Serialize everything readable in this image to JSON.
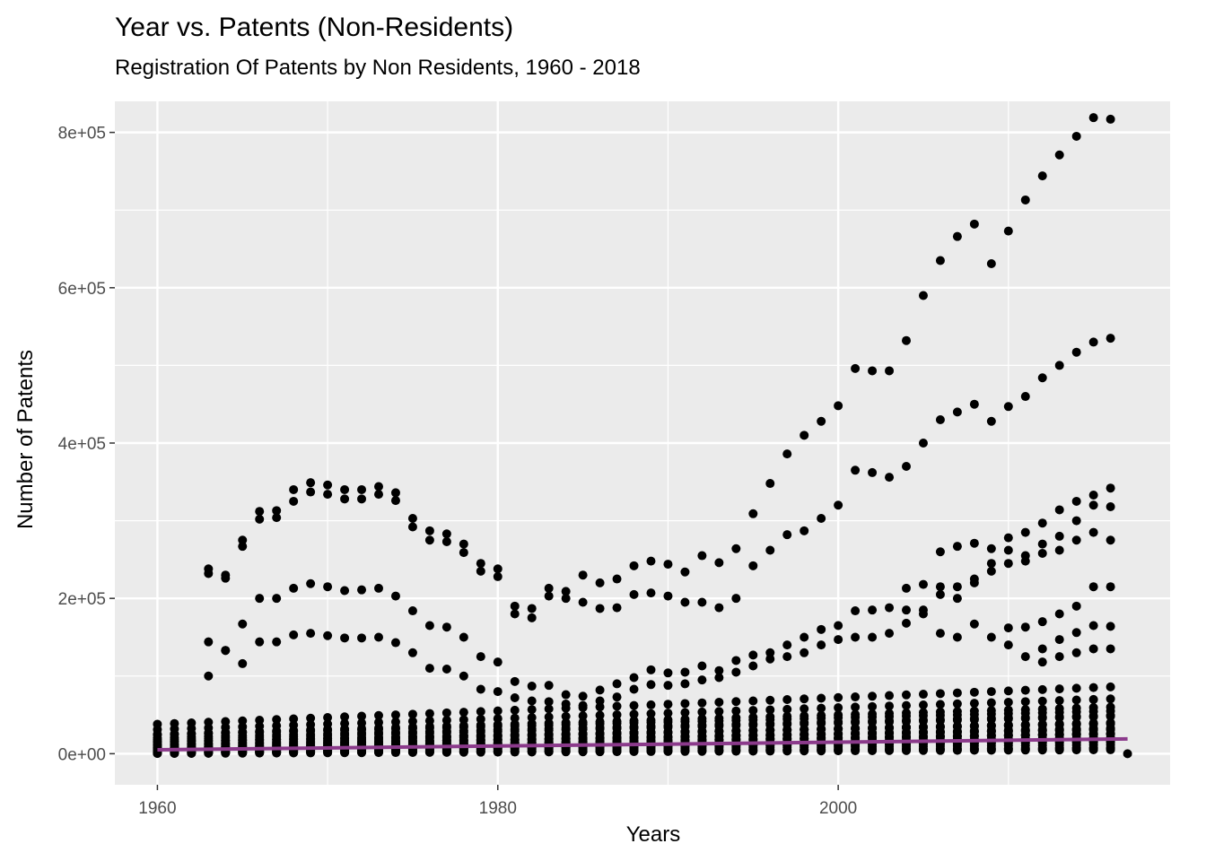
{
  "chart_data": {
    "type": "scatter",
    "title": "Year vs. Patents (Non-Residents)",
    "subtitle": "Registration Of Patents by Non Residents, 1960 - 2018",
    "xlabel": "Years",
    "ylabel": "Number of Patents",
    "xlim": [
      1957.5,
      2019.5
    ],
    "ylim": [
      -40000,
      840000
    ],
    "x_ticks": [
      1960,
      1980,
      2000
    ],
    "y_ticks": [
      0,
      200000,
      400000,
      600000,
      800000
    ],
    "y_tick_labels": [
      "0e+00",
      "2e+05",
      "4e+05",
      "6e+05",
      "8e+05"
    ],
    "grid": true,
    "legend": "none",
    "point_color": "#000000",
    "trend_color": "#8b3a8b",
    "panel_background": "#ebebeb",
    "upper_series": [
      {
        "name": "",
        "points": [
          [
            1963,
            238000
          ],
          [
            1964,
            230000
          ],
          [
            1965,
            275000
          ],
          [
            1966,
            312000
          ],
          [
            1967,
            313000
          ],
          [
            1968,
            340000
          ],
          [
            1969,
            349000
          ],
          [
            1970,
            346000
          ],
          [
            1971,
            340000
          ],
          [
            1972,
            340000
          ],
          [
            1973,
            344000
          ],
          [
            1974,
            336000
          ],
          [
            1975,
            303000
          ],
          [
            1976,
            287000
          ],
          [
            1977,
            283000
          ],
          [
            1978,
            270000
          ],
          [
            1979,
            245000
          ],
          [
            1980,
            238000
          ],
          [
            1981,
            190000
          ],
          [
            1982,
            187000
          ],
          [
            1983,
            213000
          ],
          [
            1984,
            209000
          ],
          [
            1985,
            230000
          ],
          [
            1986,
            220000
          ],
          [
            1987,
            225000
          ],
          [
            1988,
            242000
          ],
          [
            1989,
            248000
          ],
          [
            1990,
            244000
          ],
          [
            1991,
            234000
          ],
          [
            1992,
            255000
          ],
          [
            1993,
            246000
          ],
          [
            1994,
            264000
          ],
          [
            1995,
            309000
          ],
          [
            1996,
            348000
          ],
          [
            1997,
            386000
          ],
          [
            1998,
            410000
          ],
          [
            1999,
            428000
          ],
          [
            2000,
            448000
          ],
          [
            2001,
            496000
          ],
          [
            2002,
            493000
          ],
          [
            2003,
            493000
          ],
          [
            2004,
            532000
          ],
          [
            2005,
            590000
          ],
          [
            2006,
            635000
          ],
          [
            2007,
            666000
          ],
          [
            2008,
            682000
          ],
          [
            2009,
            631000
          ],
          [
            2010,
            673000
          ],
          [
            2011,
            713000
          ],
          [
            2012,
            744000
          ],
          [
            2013,
            771000
          ],
          [
            2014,
            795000
          ],
          [
            2015,
            819000
          ],
          [
            2016,
            817000
          ]
        ]
      },
      {
        "name": "",
        "points": [
          [
            1963,
            232000
          ],
          [
            1964,
            226000
          ],
          [
            1965,
            267000
          ],
          [
            1966,
            302000
          ],
          [
            1967,
            304000
          ],
          [
            1968,
            325000
          ],
          [
            1969,
            337000
          ],
          [
            1970,
            334000
          ],
          [
            1971,
            328000
          ],
          [
            1972,
            328000
          ],
          [
            1973,
            334000
          ],
          [
            1974,
            326000
          ],
          [
            1975,
            292000
          ],
          [
            1976,
            275000
          ],
          [
            1977,
            273000
          ],
          [
            1978,
            259000
          ],
          [
            1979,
            235000
          ],
          [
            1980,
            228000
          ],
          [
            1981,
            180000
          ],
          [
            1982,
            175000
          ],
          [
            1983,
            203000
          ],
          [
            1984,
            200000
          ],
          [
            1985,
            195000
          ],
          [
            1986,
            187000
          ],
          [
            1987,
            188000
          ],
          [
            1988,
            205000
          ],
          [
            1989,
            207000
          ],
          [
            1990,
            203000
          ],
          [
            1991,
            195000
          ],
          [
            1992,
            195000
          ],
          [
            1993,
            188000
          ],
          [
            1994,
            200000
          ],
          [
            1995,
            242000
          ],
          [
            1996,
            262000
          ],
          [
            1997,
            282000
          ],
          [
            1998,
            287000
          ],
          [
            1999,
            303000
          ],
          [
            2000,
            320000
          ],
          [
            2001,
            365000
          ],
          [
            2002,
            362000
          ],
          [
            2003,
            356000
          ],
          [
            2004,
            370000
          ],
          [
            2005,
            400000
          ],
          [
            2006,
            430000
          ],
          [
            2007,
            440000
          ],
          [
            2008,
            450000
          ],
          [
            2009,
            428000
          ],
          [
            2010,
            447000
          ],
          [
            2011,
            460000
          ],
          [
            2012,
            484000
          ],
          [
            2013,
            500000
          ],
          [
            2014,
            517000
          ],
          [
            2015,
            530000
          ],
          [
            2016,
            535000
          ]
        ]
      },
      {
        "name": "",
        "points": [
          [
            1963,
            100000
          ],
          [
            1964,
            133000
          ],
          [
            1965,
            167000
          ],
          [
            1966,
            200000
          ],
          [
            1967,
            200000
          ],
          [
            1968,
            213000
          ],
          [
            1969,
            219000
          ],
          [
            1970,
            215000
          ],
          [
            1971,
            210000
          ],
          [
            1972,
            211000
          ],
          [
            1973,
            213000
          ],
          [
            1974,
            203000
          ],
          [
            1975,
            184000
          ],
          [
            1976,
            165000
          ],
          [
            1977,
            163000
          ],
          [
            1978,
            150000
          ],
          [
            1979,
            125000
          ],
          [
            1980,
            118000
          ],
          [
            1981,
            93000
          ],
          [
            1982,
            87000
          ],
          [
            1983,
            88000
          ],
          [
            1984,
            76000
          ],
          [
            1985,
            74000
          ],
          [
            1986,
            82000
          ],
          [
            1987,
            90000
          ],
          [
            1988,
            98000
          ],
          [
            1989,
            108000
          ],
          [
            1990,
            104000
          ],
          [
            1991,
            105000
          ],
          [
            1992,
            113000
          ],
          [
            1993,
            107000
          ],
          [
            1994,
            120000
          ],
          [
            1995,
            127000
          ],
          [
            1996,
            130000
          ],
          [
            1997,
            140000
          ],
          [
            1998,
            150000
          ],
          [
            1999,
            160000
          ],
          [
            2000,
            165000
          ],
          [
            2001,
            184000
          ],
          [
            2002,
            185000
          ],
          [
            2003,
            188000
          ],
          [
            2004,
            213000
          ],
          [
            2005,
            218000
          ],
          [
            2006,
            260000
          ],
          [
            2007,
            267000
          ],
          [
            2008,
            271000
          ],
          [
            2009,
            264000
          ],
          [
            2010,
            278000
          ],
          [
            2011,
            285000
          ],
          [
            2012,
            297000
          ],
          [
            2013,
            314000
          ],
          [
            2014,
            325000
          ],
          [
            2015,
            333000
          ],
          [
            2016,
            342000
          ]
        ]
      },
      {
        "name": "",
        "points": [
          [
            1963,
            144000
          ],
          [
            1964,
            133000
          ],
          [
            1965,
            116000
          ],
          [
            1966,
            144000
          ],
          [
            1967,
            144000
          ],
          [
            1968,
            153000
          ],
          [
            1969,
            155000
          ],
          [
            1970,
            152000
          ],
          [
            1971,
            149000
          ],
          [
            1972,
            149000
          ],
          [
            1973,
            150000
          ],
          [
            1974,
            143000
          ],
          [
            1975,
            130000
          ],
          [
            1976,
            110000
          ],
          [
            1977,
            109000
          ],
          [
            1978,
            100000
          ],
          [
            1979,
            83000
          ],
          [
            1980,
            80000
          ],
          [
            1981,
            72000
          ],
          [
            1982,
            68000
          ],
          [
            1983,
            67000
          ],
          [
            1984,
            64000
          ],
          [
            1985,
            62000
          ],
          [
            1986,
            68000
          ],
          [
            1987,
            73000
          ],
          [
            1988,
            83000
          ],
          [
            1989,
            89000
          ],
          [
            1990,
            88000
          ],
          [
            1991,
            90000
          ],
          [
            1992,
            95000
          ],
          [
            1993,
            98000
          ],
          [
            1994,
            105000
          ],
          [
            1995,
            113000
          ],
          [
            1996,
            122000
          ],
          [
            1997,
            125000
          ],
          [
            1998,
            130000
          ],
          [
            1999,
            140000
          ],
          [
            2000,
            147000
          ],
          [
            2001,
            150000
          ],
          [
            2002,
            150000
          ],
          [
            2003,
            155000
          ],
          [
            2004,
            168000
          ],
          [
            2005,
            185000
          ],
          [
            2006,
            205000
          ],
          [
            2007,
            215000
          ],
          [
            2008,
            225000
          ],
          [
            2009,
            235000
          ],
          [
            2010,
            245000
          ],
          [
            2011,
            255000
          ],
          [
            2012,
            258000
          ],
          [
            2013,
            262000
          ],
          [
            2014,
            275000
          ],
          [
            2015,
            285000
          ],
          [
            2016,
            275000
          ]
        ]
      },
      {
        "name": "",
        "points": [
          [
            2004,
            185000
          ],
          [
            2005,
            180000
          ],
          [
            2006,
            155000
          ],
          [
            2007,
            150000
          ],
          [
            2008,
            167000
          ],
          [
            2009,
            150000
          ],
          [
            2010,
            162000
          ],
          [
            2011,
            163000
          ],
          [
            2012,
            170000
          ],
          [
            2013,
            180000
          ],
          [
            2014,
            190000
          ],
          [
            2015,
            215000
          ],
          [
            2016,
            215000
          ],
          [
            2006,
            215000
          ],
          [
            2007,
            200000
          ],
          [
            2008,
            220000
          ],
          [
            2009,
            245000
          ],
          [
            2010,
            262000
          ],
          [
            2011,
            248000
          ],
          [
            2012,
            270000
          ],
          [
            2013,
            280000
          ],
          [
            2014,
            300000
          ],
          [
            2015,
            320000
          ],
          [
            2016,
            318000
          ],
          [
            2010,
            140000
          ],
          [
            2011,
            125000
          ],
          [
            2012,
            135000
          ],
          [
            2013,
            147000
          ],
          [
            2014,
            156000
          ],
          [
            2015,
            165000
          ],
          [
            2016,
            164000
          ],
          [
            2012,
            118000
          ],
          [
            2013,
            125000
          ],
          [
            2014,
            130000
          ],
          [
            2015,
            135000
          ],
          [
            2016,
            135000
          ]
        ]
      }
    ],
    "dense_band": {
      "x_start": 1960,
      "x_end": 2016,
      "rows": [
        {
          "name": "",
          "values_start": 38000,
          "values_end": 86000
        },
        {
          "name": "",
          "values_start": 25000,
          "values_end": 60000
        },
        {
          "name": "",
          "values_start": 18000,
          "values_end": 48000
        },
        {
          "name": "",
          "values_start": 12000,
          "values_end": 40000
        },
        {
          "name": "",
          "values_start": 8000,
          "values_end": 32000
        },
        {
          "name": "",
          "values_start": 5000,
          "values_end": 25000
        },
        {
          "name": "",
          "values_start": 2000,
          "values_end": 18000
        },
        {
          "name": "",
          "values_start": 500,
          "values_end": 8000
        }
      ],
      "final_point": [
        2017,
        0
      ]
    },
    "trend_line": {
      "name": "",
      "x": [
        1960,
        2017
      ],
      "y": [
        5000,
        19000
      ]
    }
  }
}
